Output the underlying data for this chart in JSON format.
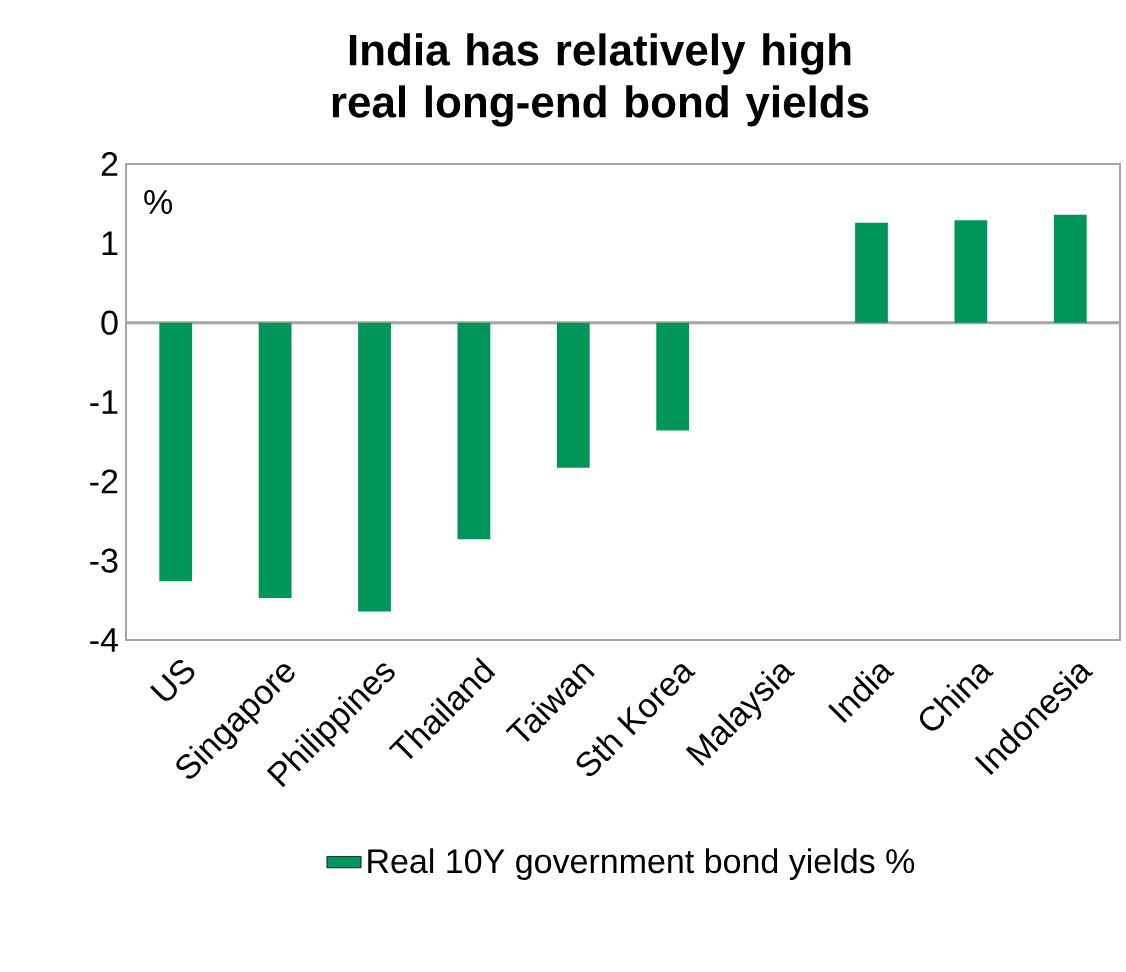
{
  "chart_data": {
    "type": "bar",
    "title": "India has relatively high real long-end bond yields",
    "ylabel": "%",
    "categories": [
      "US",
      "Singapore",
      "Philippines",
      "Thailand",
      "Taiwan",
      "Sth Korea",
      "Malaysia",
      "India",
      "China",
      "Indonesia"
    ],
    "series": [
      {
        "name": "Real 10Y government bond yields %",
        "color": "#00965a",
        "values": [
          -3.26,
          -3.47,
          -3.64,
          -2.73,
          -1.83,
          -1.36,
          0,
          1.26,
          1.29,
          1.36
        ]
      }
    ],
    "ylim": [
      -4,
      2
    ],
    "yticks": [
      -4,
      -3,
      -2,
      -1,
      0,
      1,
      2
    ],
    "legend": "bottom"
  }
}
